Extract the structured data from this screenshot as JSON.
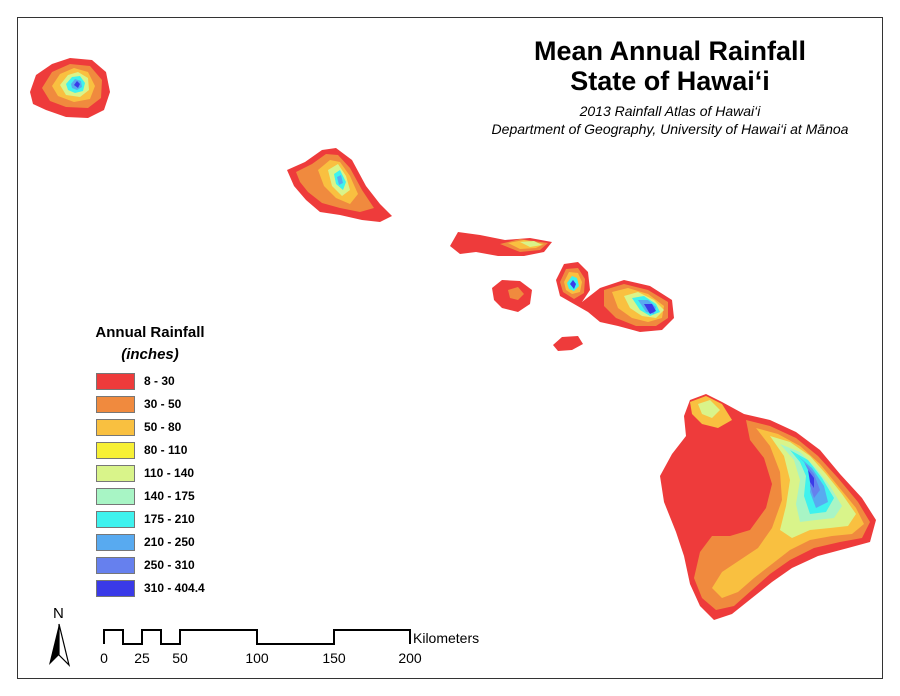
{
  "title_line1": "Mean Annual Rainfall",
  "title_line2": "State of Hawai‘i",
  "subtitle_line1": "2013 Rainfall Atlas of Hawai‘i",
  "subtitle_line2": "Department of Geography, University of Hawai‘i at Mānoa",
  "legend": {
    "title": "Annual Rainfall",
    "subtitle": "(inches)",
    "classes": [
      {
        "label": "8 - 30",
        "color": "#ee3b3b"
      },
      {
        "label": "30 - 50",
        "color": "#f08a3e"
      },
      {
        "label": "50 - 80",
        "color": "#f9c040"
      },
      {
        "label": "80 - 110",
        "color": "#f7f035"
      },
      {
        "label": "110 - 140",
        "color": "#d9f48a"
      },
      {
        "label": "140 - 175",
        "color": "#a8f5c5"
      },
      {
        "label": "175 - 210",
        "color": "#3ff2ee"
      },
      {
        "label": "210 - 250",
        "color": "#58aaf0"
      },
      {
        "label": "250 - 310",
        "color": "#6680ee"
      },
      {
        "label": "310 - 404.4",
        "color": "#3a3ae8"
      }
    ]
  },
  "north_arrow": {
    "label": "N"
  },
  "scale_bar": {
    "unit": "Kilometers",
    "ticks": [
      "0",
      "25",
      "50",
      "100",
      "150",
      "200"
    ]
  }
}
